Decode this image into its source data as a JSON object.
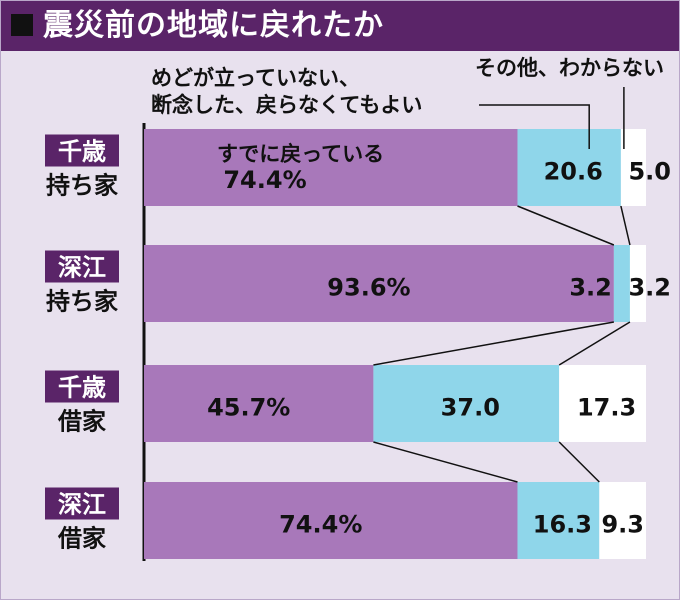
{
  "title": "震災前の地域に戻れたか",
  "chart_data": {
    "type": "bar",
    "stacked": true,
    "orientation": "horizontal",
    "unit": "%",
    "categories": [
      {
        "top": "千歳",
        "bottom": "持ち家"
      },
      {
        "top": "深江",
        "bottom": "持ち家"
      },
      {
        "top": "千歳",
        "bottom": "借家"
      },
      {
        "top": "深江",
        "bottom": "借家"
      }
    ],
    "series": [
      {
        "name": "すでに戻っている",
        "values": [
          74.4,
          93.6,
          45.7,
          74.4
        ],
        "labels": [
          "74.4%",
          "93.6%",
          "45.7%",
          "74.4%"
        ],
        "color": "#a878ba"
      },
      {
        "name_lines": [
          "めどが立っていない、",
          "断念した、戻らなくてもよい"
        ],
        "values": [
          20.6,
          3.2,
          37.0,
          16.3
        ],
        "labels": [
          "20.6",
          "3.2",
          "37.0",
          "16.3"
        ],
        "color": "#8fd6ea"
      },
      {
        "name": "その他、わからない",
        "values": [
          5.0,
          3.2,
          17.3,
          9.3
        ],
        "labels": [
          "5.0",
          "3.2",
          "17.3",
          "9.3"
        ],
        "color": "#ffffff"
      }
    ],
    "xlim": [
      0,
      100
    ],
    "colors": {
      "title_band": "#5a2468",
      "category_box": "#5a2468",
      "background": "#e8e1ee",
      "axis": "#111111"
    }
  }
}
